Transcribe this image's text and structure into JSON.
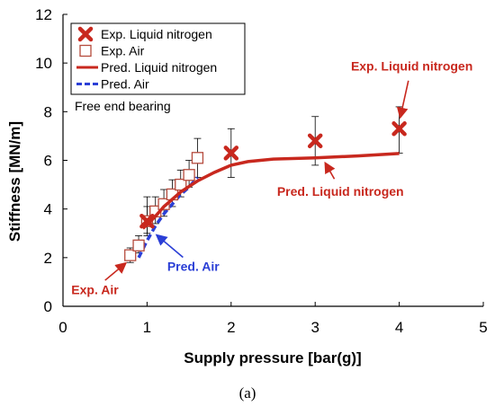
{
  "chart_data": {
    "type": "scatter",
    "xlabel": "Supply pressure [bar(g)]",
    "ylabel": "Stiffness [MN/m]",
    "xlim": [
      0,
      5
    ],
    "ylim": [
      0,
      12
    ],
    "xticks": [
      "0",
      "1",
      "2",
      "3",
      "4",
      "5"
    ],
    "yticks": [
      "0",
      "2",
      "4",
      "6",
      "8",
      "10",
      "12"
    ],
    "grid": false,
    "legend_position": "top-left",
    "inset_label": "Free end bearing",
    "caption": "(a)",
    "colors": {
      "nitrogen": "#c8281e",
      "air": "#2b3fd6",
      "air_marker": "#b54a3c"
    },
    "series": [
      {
        "name": "Exp. Liquid nitrogen",
        "kind": "marker-x",
        "x": [
          1,
          2,
          3,
          4
        ],
        "y": [
          3.5,
          6.3,
          6.8,
          7.3
        ],
        "err_low": [
          2.9,
          5.3,
          5.8,
          6.3
        ],
        "err_high": [
          4.5,
          7.3,
          7.8,
          8.2
        ]
      },
      {
        "name": "Exp. Air",
        "kind": "marker-square",
        "x": [
          0.8,
          0.9,
          1.0,
          1.1,
          1.2,
          1.3,
          1.4,
          1.5,
          1.6
        ],
        "y": [
          2.1,
          2.5,
          3.5,
          3.9,
          4.2,
          4.6,
          5.0,
          5.4,
          6.1
        ],
        "err_low": [
          1.8,
          2.2,
          3.0,
          3.4,
          3.7,
          4.1,
          4.5,
          4.9,
          5.3
        ],
        "err_high": [
          2.4,
          2.9,
          4.1,
          4.5,
          4.8,
          5.2,
          5.6,
          6.0,
          6.9
        ]
      },
      {
        "name": "Pred. Liquid nitrogen",
        "kind": "line-solid",
        "x": [
          0.95,
          1.0,
          1.1,
          1.2,
          1.4,
          1.6,
          1.8,
          2.0,
          2.2,
          2.5,
          3.0,
          3.5,
          4.0
        ],
        "y": [
          3.2,
          3.35,
          3.7,
          4.1,
          4.7,
          5.15,
          5.5,
          5.8,
          5.95,
          6.05,
          6.1,
          6.18,
          6.28
        ]
      },
      {
        "name": "Pred. Air",
        "kind": "line-dashed",
        "x": [
          0.9,
          1.0,
          1.1,
          1.2,
          1.3,
          1.4,
          1.5,
          1.6
        ],
        "y": [
          2.0,
          2.7,
          3.3,
          3.8,
          4.2,
          4.6,
          4.9,
          5.3
        ]
      }
    ],
    "annotations": [
      {
        "text": "Exp. Liquid nitrogen",
        "color": "nitrogen",
        "tx": 4.15,
        "ty": 9.7,
        "ax": 4.0,
        "ay": 7.6
      },
      {
        "text": "Pred. Liquid nitrogen",
        "color": "nitrogen",
        "tx": 3.3,
        "ty": 4.55,
        "ax": 3.1,
        "ay": 6.05
      },
      {
        "text": "Pred. Air",
        "color": "air",
        "tx": 1.55,
        "ty": 1.45,
        "ax": 1.08,
        "ay": 3.05
      },
      {
        "text": "Exp. Air",
        "color": "nitrogen",
        "tx": 0.38,
        "ty": 0.5,
        "ax": 0.78,
        "ay": 1.9
      }
    ]
  }
}
